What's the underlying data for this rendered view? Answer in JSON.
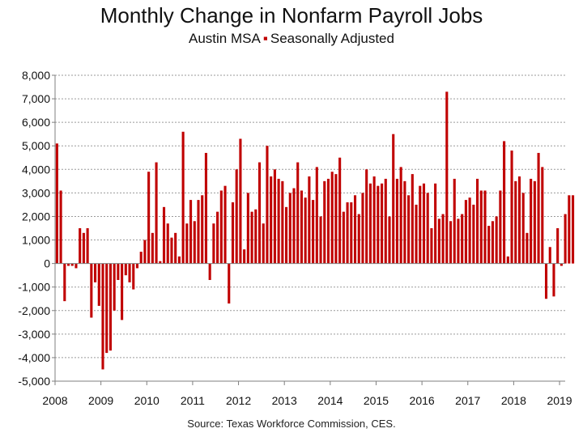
{
  "chart_data": {
    "type": "bar",
    "title": "Monthly Change in Nonfarm Payroll Jobs",
    "subtitle_left": "Austin MSA",
    "subtitle_separator": "▪",
    "subtitle_right": "Seasonally Adjusted",
    "source": "Source: Texas Workforce Commission, CES.",
    "ylim": [
      -5000,
      8000
    ],
    "yticks": [
      8000,
      7000,
      6000,
      5000,
      4000,
      3000,
      2000,
      1000,
      0,
      -1000,
      -2000,
      -3000,
      -4000,
      -5000
    ],
    "ytick_labels": [
      "8,000",
      "7,000",
      "6,000",
      "5,000",
      "4,000",
      "3,000",
      "2,000",
      "1,000",
      "0",
      "-1,000",
      "-2,000",
      "-3,000",
      "-4,000",
      "-5,000"
    ],
    "xtick_labels": [
      "2008",
      "2009",
      "2010",
      "2011",
      "2012",
      "2013",
      "2014",
      "2015",
      "2016",
      "2017",
      "2018",
      "2019"
    ],
    "start": "2008-01",
    "grid": true,
    "bar_color": "#c00000",
    "series": [
      {
        "values": [
          5100,
          3100,
          -1600,
          -100,
          -100,
          -200,
          1500,
          1300,
          1500,
          -2300,
          -800,
          -1800,
          -4500,
          -3800,
          -3700,
          -2000,
          -700,
          -2400,
          -500,
          -800,
          -1100,
          -200,
          500,
          1000,
          3900,
          1300,
          4300,
          100,
          2400,
          1700,
          1100,
          1300,
          300,
          5600,
          1700,
          2700,
          1800,
          2700,
          2900,
          4700,
          -700,
          1700,
          2200,
          3100,
          3300,
          -1700,
          2600,
          4000,
          5300,
          600,
          3000,
          2200,
          2300,
          4300,
          1700,
          5000,
          3700,
          4000,
          3600,
          3500,
          2400,
          3000,
          3200,
          4300,
          3100,
          2800,
          3700,
          2700,
          4100,
          2000,
          3500,
          3600,
          3900,
          3800,
          4500,
          2200,
          2600,
          2600,
          2900,
          2100,
          3000,
          4000,
          3400,
          3700,
          3300,
          3400,
          3600,
          2000,
          5500,
          3600,
          4100,
          3500,
          2900,
          3800,
          2500,
          3300,
          3400,
          3000,
          1500,
          3400,
          1900,
          2100,
          7300,
          1800,
          3600,
          1900,
          2100,
          2700,
          2800,
          2500,
          3600,
          3100,
          3100,
          1600,
          1800,
          2000,
          3100,
          5200,
          300,
          4800,
          3500,
          3700,
          3000,
          1300,
          3600,
          3500,
          4700,
          4100,
          -1500,
          700,
          -1400,
          1500,
          -100,
          2100,
          2900,
          2900
        ]
      }
    ]
  }
}
